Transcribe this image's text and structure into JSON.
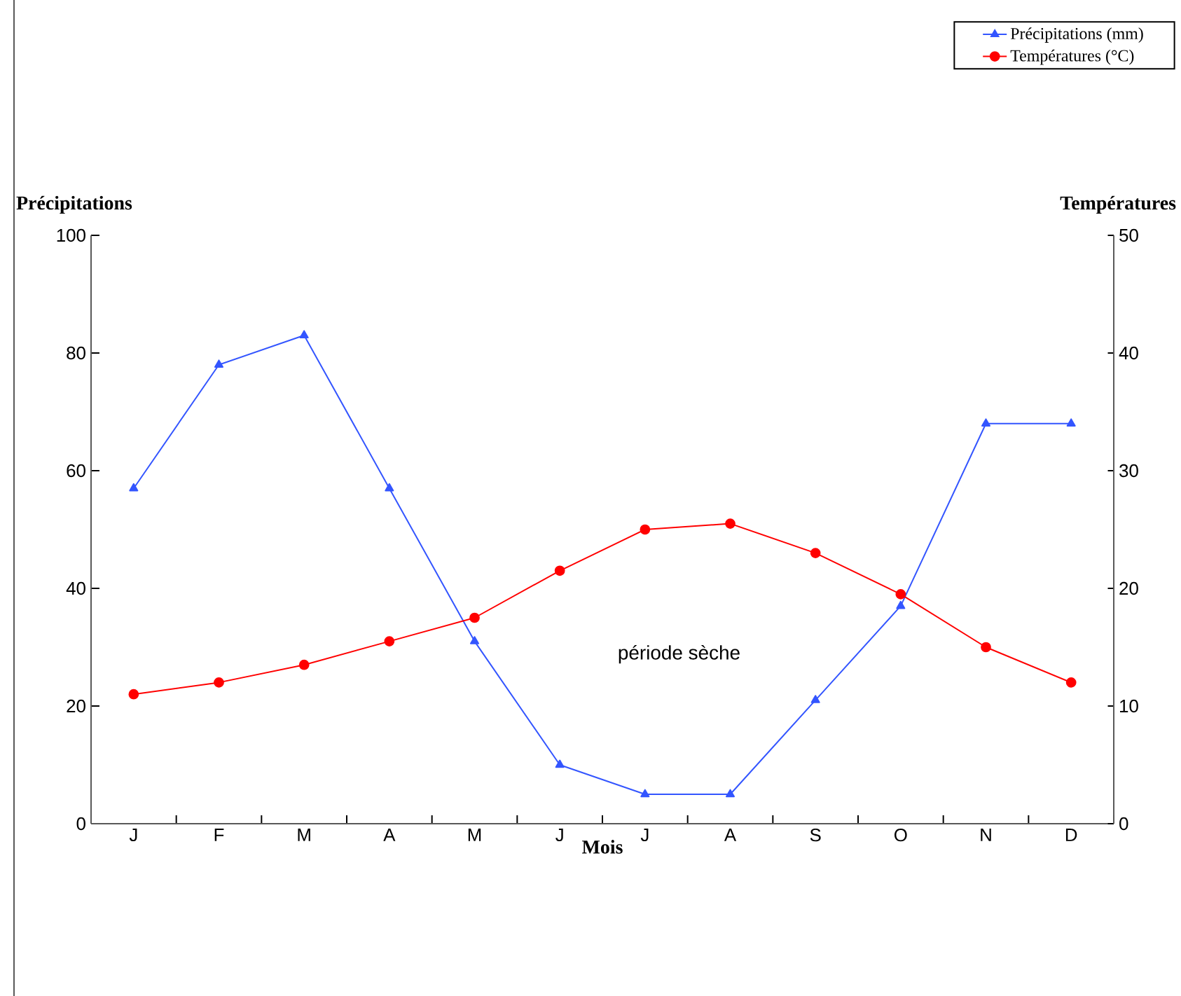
{
  "chart_data": {
    "type": "line",
    "categories": [
      "J",
      "F",
      "M",
      "A",
      "M",
      "J",
      "J",
      "A",
      "S",
      "O",
      "N",
      "D"
    ],
    "xlabel": "Mois",
    "ylabel": "Précipitations",
    "y2label": "Températures",
    "series": [
      {
        "name": "Précipitations (mm)",
        "color": "#3355ff",
        "marker": "triangle",
        "values": [
          57,
          78,
          83,
          57,
          31,
          10,
          5,
          5,
          21,
          37,
          68,
          68
        ]
      },
      {
        "name": "Températures (°C)",
        "color": "#ff0000",
        "marker": "circle",
        "axis": "y2",
        "values": [
          11,
          12,
          13.5,
          15.5,
          17.5,
          21.5,
          25,
          25.5,
          23,
          19.5,
          15,
          12
        ]
      }
    ],
    "ylim": [
      0,
      100
    ],
    "yticks": [
      0,
      20,
      40,
      60,
      80,
      100
    ],
    "y2lim": [
      0,
      50
    ],
    "y2ticks": [
      0,
      10,
      20,
      30,
      40,
      50
    ],
    "annotations": [
      "période sèche"
    ],
    "legend": "top right",
    "grid": false
  }
}
